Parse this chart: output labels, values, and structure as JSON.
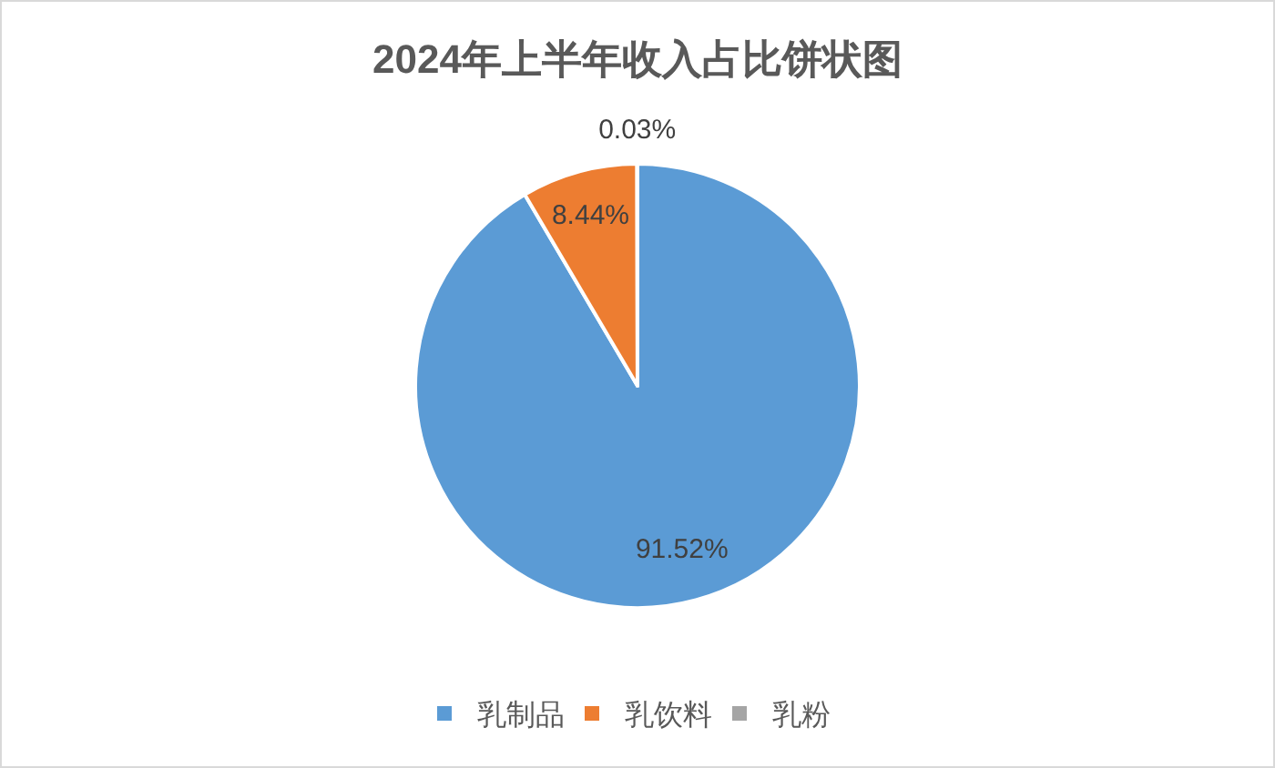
{
  "chart_data": {
    "type": "pie",
    "title": "2024年上半年收入占比饼状图",
    "categories": [
      "乳制品",
      "乳饮料",
      "乳粉"
    ],
    "values": [
      91.52,
      8.44,
      0.03
    ],
    "colors": [
      "#5b9bd5",
      "#ed7d31",
      "#a5a5a5"
    ],
    "value_labels": [
      "91.52%",
      "8.44%",
      "0.03%"
    ],
    "legend": "bottom"
  }
}
